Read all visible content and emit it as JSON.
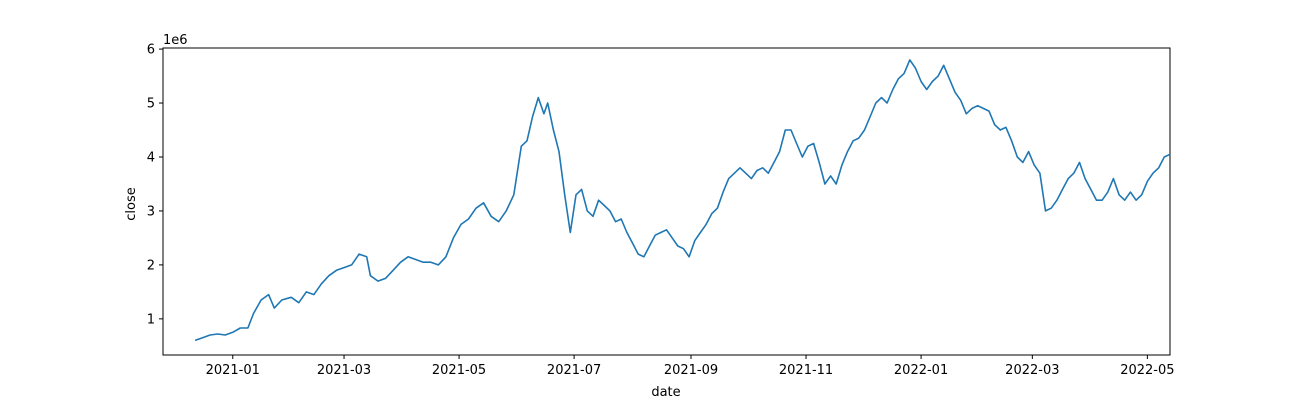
{
  "chart_data": {
    "type": "line",
    "title": "",
    "xlabel": "date",
    "ylabel": "close",
    "y_offset_label": "1e6",
    "color": "#1f77b4",
    "grid": false,
    "xlim": [
      "2020-11-25",
      "2022-05-13"
    ],
    "ylim": [
      330000,
      6020000
    ],
    "x_ticks": [
      {
        "date": "2021-01-01",
        "label": "2021-01"
      },
      {
        "date": "2021-03-01",
        "label": "2021-03"
      },
      {
        "date": "2021-05-01",
        "label": "2021-05"
      },
      {
        "date": "2021-07-01",
        "label": "2021-07"
      },
      {
        "date": "2021-09-01",
        "label": "2021-09"
      },
      {
        "date": "2021-11-01",
        "label": "2021-11"
      },
      {
        "date": "2022-01-01",
        "label": "2022-01"
      },
      {
        "date": "2022-03-01",
        "label": "2022-03"
      },
      {
        "date": "2022-05-01",
        "label": "2022-05"
      }
    ],
    "y_ticks": [
      {
        "value": 1000000,
        "label": "1"
      },
      {
        "value": 2000000,
        "label": "2"
      },
      {
        "value": 3000000,
        "label": "3"
      },
      {
        "value": 4000000,
        "label": "4"
      },
      {
        "value": 5000000,
        "label": "5"
      },
      {
        "value": 6000000,
        "label": "6"
      }
    ],
    "series": [
      {
        "name": "close",
        "points": [
          [
            "2020-12-12",
            600000
          ],
          [
            "2020-12-16",
            650000
          ],
          [
            "2020-12-20",
            700000
          ],
          [
            "2020-12-24",
            720000
          ],
          [
            "2020-12-28",
            700000
          ],
          [
            "2021-01-01",
            750000
          ],
          [
            "2021-01-05",
            830000
          ],
          [
            "2021-01-09",
            830000
          ],
          [
            "2021-01-12",
            1100000
          ],
          [
            "2021-01-16",
            1350000
          ],
          [
            "2021-01-20",
            1450000
          ],
          [
            "2021-01-23",
            1200000
          ],
          [
            "2021-01-27",
            1350000
          ],
          [
            "2021-02-01",
            1400000
          ],
          [
            "2021-02-05",
            1300000
          ],
          [
            "2021-02-09",
            1500000
          ],
          [
            "2021-02-13",
            1450000
          ],
          [
            "2021-02-17",
            1650000
          ],
          [
            "2021-02-21",
            1800000
          ],
          [
            "2021-02-25",
            1900000
          ],
          [
            "2021-03-01",
            1950000
          ],
          [
            "2021-03-05",
            2000000
          ],
          [
            "2021-03-09",
            2200000
          ],
          [
            "2021-03-13",
            2150000
          ],
          [
            "2021-03-15",
            1800000
          ],
          [
            "2021-03-19",
            1700000
          ],
          [
            "2021-03-23",
            1750000
          ],
          [
            "2021-03-27",
            1900000
          ],
          [
            "2021-03-31",
            2050000
          ],
          [
            "2021-04-04",
            2150000
          ],
          [
            "2021-04-08",
            2100000
          ],
          [
            "2021-04-12",
            2050000
          ],
          [
            "2021-04-16",
            2050000
          ],
          [
            "2021-04-20",
            2000000
          ],
          [
            "2021-04-24",
            2150000
          ],
          [
            "2021-04-28",
            2500000
          ],
          [
            "2021-05-02",
            2750000
          ],
          [
            "2021-05-06",
            2850000
          ],
          [
            "2021-05-10",
            3050000
          ],
          [
            "2021-05-14",
            3150000
          ],
          [
            "2021-05-18",
            2900000
          ],
          [
            "2021-05-22",
            2800000
          ],
          [
            "2021-05-26",
            3000000
          ],
          [
            "2021-05-30",
            3300000
          ],
          [
            "2021-06-03",
            4200000
          ],
          [
            "2021-06-06",
            4300000
          ],
          [
            "2021-06-09",
            4750000
          ],
          [
            "2021-06-12",
            5100000
          ],
          [
            "2021-06-15",
            4800000
          ],
          [
            "2021-06-17",
            5000000
          ],
          [
            "2021-06-20",
            4500000
          ],
          [
            "2021-06-23",
            4100000
          ],
          [
            "2021-06-26",
            3300000
          ],
          [
            "2021-06-29",
            2600000
          ],
          [
            "2021-07-02",
            3300000
          ],
          [
            "2021-07-05",
            3400000
          ],
          [
            "2021-07-08",
            3000000
          ],
          [
            "2021-07-11",
            2900000
          ],
          [
            "2021-07-14",
            3200000
          ],
          [
            "2021-07-17",
            3100000
          ],
          [
            "2021-07-20",
            3000000
          ],
          [
            "2021-07-23",
            2800000
          ],
          [
            "2021-07-26",
            2850000
          ],
          [
            "2021-07-29",
            2600000
          ],
          [
            "2021-08-01",
            2400000
          ],
          [
            "2021-08-04",
            2200000
          ],
          [
            "2021-08-07",
            2150000
          ],
          [
            "2021-08-10",
            2350000
          ],
          [
            "2021-08-13",
            2550000
          ],
          [
            "2021-08-16",
            2600000
          ],
          [
            "2021-08-19",
            2650000
          ],
          [
            "2021-08-22",
            2500000
          ],
          [
            "2021-08-25",
            2350000
          ],
          [
            "2021-08-28",
            2300000
          ],
          [
            "2021-08-31",
            2150000
          ],
          [
            "2021-09-03",
            2450000
          ],
          [
            "2021-09-06",
            2600000
          ],
          [
            "2021-09-09",
            2750000
          ],
          [
            "2021-09-12",
            2950000
          ],
          [
            "2021-09-15",
            3050000
          ],
          [
            "2021-09-18",
            3350000
          ],
          [
            "2021-09-21",
            3600000
          ],
          [
            "2021-09-24",
            3700000
          ],
          [
            "2021-09-27",
            3800000
          ],
          [
            "2021-09-30",
            3700000
          ],
          [
            "2021-10-03",
            3600000
          ],
          [
            "2021-10-06",
            3750000
          ],
          [
            "2021-10-09",
            3800000
          ],
          [
            "2021-10-12",
            3700000
          ],
          [
            "2021-10-15",
            3900000
          ],
          [
            "2021-10-18",
            4100000
          ],
          [
            "2021-10-21",
            4500000
          ],
          [
            "2021-10-24",
            4500000
          ],
          [
            "2021-10-27",
            4250000
          ],
          [
            "2021-10-30",
            4000000
          ],
          [
            "2021-11-02",
            4200000
          ],
          [
            "2021-11-05",
            4250000
          ],
          [
            "2021-11-08",
            3900000
          ],
          [
            "2021-11-11",
            3500000
          ],
          [
            "2021-11-14",
            3650000
          ],
          [
            "2021-11-17",
            3500000
          ],
          [
            "2021-11-20",
            3850000
          ],
          [
            "2021-11-23",
            4100000
          ],
          [
            "2021-11-26",
            4300000
          ],
          [
            "2021-11-29",
            4350000
          ],
          [
            "2021-12-02",
            4500000
          ],
          [
            "2021-12-05",
            4750000
          ],
          [
            "2021-12-08",
            5000000
          ],
          [
            "2021-12-11",
            5100000
          ],
          [
            "2021-12-14",
            5000000
          ],
          [
            "2021-12-17",
            5250000
          ],
          [
            "2021-12-20",
            5450000
          ],
          [
            "2021-12-23",
            5550000
          ],
          [
            "2021-12-26",
            5800000
          ],
          [
            "2021-12-29",
            5650000
          ],
          [
            "2022-01-01",
            5400000
          ],
          [
            "2022-01-04",
            5250000
          ],
          [
            "2022-01-07",
            5400000
          ],
          [
            "2022-01-10",
            5500000
          ],
          [
            "2022-01-13",
            5700000
          ],
          [
            "2022-01-16",
            5450000
          ],
          [
            "2022-01-19",
            5200000
          ],
          [
            "2022-01-22",
            5050000
          ],
          [
            "2022-01-25",
            4800000
          ],
          [
            "2022-01-28",
            4900000
          ],
          [
            "2022-01-31",
            4950000
          ],
          [
            "2022-02-03",
            4900000
          ],
          [
            "2022-02-06",
            4850000
          ],
          [
            "2022-02-09",
            4600000
          ],
          [
            "2022-02-12",
            4500000
          ],
          [
            "2022-02-15",
            4550000
          ],
          [
            "2022-02-18",
            4300000
          ],
          [
            "2022-02-21",
            4000000
          ],
          [
            "2022-02-24",
            3900000
          ],
          [
            "2022-02-27",
            4100000
          ],
          [
            "2022-03-02",
            3850000
          ],
          [
            "2022-03-05",
            3700000
          ],
          [
            "2022-03-08",
            3000000
          ],
          [
            "2022-03-11",
            3050000
          ],
          [
            "2022-03-14",
            3200000
          ],
          [
            "2022-03-17",
            3400000
          ],
          [
            "2022-03-20",
            3600000
          ],
          [
            "2022-03-23",
            3700000
          ],
          [
            "2022-03-26",
            3900000
          ],
          [
            "2022-03-29",
            3600000
          ],
          [
            "2022-04-01",
            3400000
          ],
          [
            "2022-04-04",
            3200000
          ],
          [
            "2022-04-07",
            3200000
          ],
          [
            "2022-04-10",
            3350000
          ],
          [
            "2022-04-13",
            3600000
          ],
          [
            "2022-04-16",
            3300000
          ],
          [
            "2022-04-19",
            3200000
          ],
          [
            "2022-04-22",
            3350000
          ],
          [
            "2022-04-25",
            3200000
          ],
          [
            "2022-04-28",
            3300000
          ],
          [
            "2022-05-01",
            3550000
          ],
          [
            "2022-05-04",
            3700000
          ],
          [
            "2022-05-07",
            3800000
          ],
          [
            "2022-05-10",
            4000000
          ],
          [
            "2022-05-13",
            4050000
          ]
        ]
      }
    ]
  }
}
